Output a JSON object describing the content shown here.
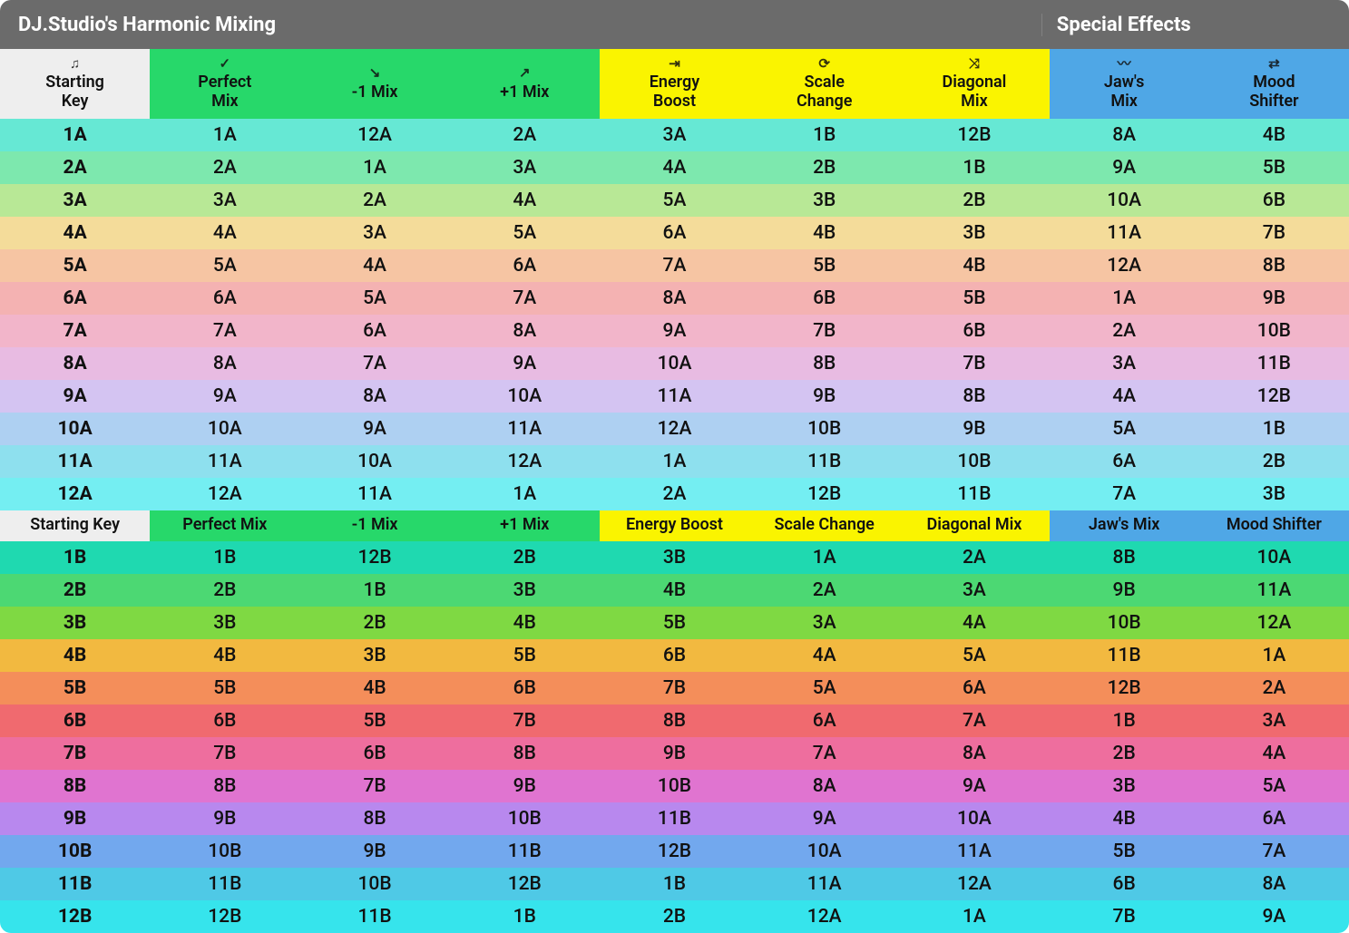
{
  "title_left": "DJ.Studio's Harmonic Mixing",
  "title_right": "Special Effects",
  "header_colors": {
    "starting": "#eeeeee",
    "green": "#27d86a",
    "yellow": "#faf400",
    "blue": "#4fa7e6"
  },
  "columns": [
    {
      "key": "starting",
      "icon": "♫",
      "label": "Starting\nKey",
      "bg_group": "starting"
    },
    {
      "key": "perfect",
      "icon": "✓",
      "label": "Perfect\nMix",
      "bg_group": "green"
    },
    {
      "key": "minus1",
      "icon": "↘",
      "label": "-1 Mix",
      "bg_group": "green"
    },
    {
      "key": "plus1",
      "icon": "↗",
      "label": "+1 Mix",
      "bg_group": "green"
    },
    {
      "key": "energy",
      "icon": "⇥",
      "label": "Energy\nBoost",
      "bg_group": "yellow"
    },
    {
      "key": "scale",
      "icon": "⟳",
      "label": "Scale\nChange",
      "bg_group": "yellow"
    },
    {
      "key": "diagonal",
      "icon": "⤨",
      "label": "Diagonal\nMix",
      "bg_group": "yellow"
    },
    {
      "key": "jaws",
      "icon": "〰",
      "label": "Jaw's\nMix",
      "bg_group": "blue"
    },
    {
      "key": "mood",
      "icon": "⇄",
      "label": "Mood\nShifter",
      "bg_group": "blue"
    }
  ],
  "sub_header_labels": [
    "Starting Key",
    "Perfect Mix",
    "-1 Mix",
    "+1 Mix",
    "Energy Boost",
    "Scale Change",
    "Diagonal Mix",
    "Jaw's Mix",
    "Mood Shifter"
  ],
  "rows_a": [
    {
      "bg": "#66e8d4",
      "cells": [
        "1A",
        "1A",
        "12A",
        "2A",
        "3A",
        "1B",
        "12B",
        "8A",
        "4B"
      ]
    },
    {
      "bg": "#7de8ae",
      "cells": [
        "2A",
        "2A",
        "1A",
        "3A",
        "4A",
        "2B",
        "1B",
        "9A",
        "5B"
      ]
    },
    {
      "bg": "#b8e896",
      "cells": [
        "3A",
        "3A",
        "2A",
        "4A",
        "5A",
        "3B",
        "2B",
        "10A",
        "6B"
      ]
    },
    {
      "bg": "#f4dc9a",
      "cells": [
        "4A",
        "4A",
        "3A",
        "5A",
        "6A",
        "4B",
        "3B",
        "11A",
        "7B"
      ]
    },
    {
      "bg": "#f6c5a3",
      "cells": [
        "5A",
        "5A",
        "4A",
        "6A",
        "7A",
        "5B",
        "4B",
        "12A",
        "8B"
      ]
    },
    {
      "bg": "#f4b2b2",
      "cells": [
        "6A",
        "6A",
        "5A",
        "7A",
        "8A",
        "6B",
        "5B",
        "1A",
        "9B"
      ]
    },
    {
      "bg": "#f2b5ca",
      "cells": [
        "7A",
        "7A",
        "6A",
        "8A",
        "9A",
        "7B",
        "6B",
        "2A",
        "10B"
      ]
    },
    {
      "bg": "#e8bbe2",
      "cells": [
        "8A",
        "8A",
        "7A",
        "9A",
        "10A",
        "8B",
        "7B",
        "3A",
        "11B"
      ]
    },
    {
      "bg": "#d4c4f2",
      "cells": [
        "9A",
        "9A",
        "8A",
        "10A",
        "11A",
        "9B",
        "8B",
        "4A",
        "12B"
      ]
    },
    {
      "bg": "#aed0f2",
      "cells": [
        "10A",
        "10A",
        "9A",
        "11A",
        "12A",
        "10B",
        "9B",
        "5A",
        "1B"
      ]
    },
    {
      "bg": "#8ee0ee",
      "cells": [
        "11A",
        "11A",
        "10A",
        "12A",
        "1A",
        "11B",
        "10B",
        "6A",
        "2B"
      ]
    },
    {
      "bg": "#74eef2",
      "cells": [
        "12A",
        "12A",
        "11A",
        "1A",
        "2A",
        "12B",
        "11B",
        "7A",
        "3B"
      ]
    }
  ],
  "rows_b": [
    {
      "bg": "#1fd9b0",
      "cells": [
        "1B",
        "1B",
        "12B",
        "2B",
        "3B",
        "1A",
        "2A",
        "8B",
        "10A"
      ]
    },
    {
      "bg": "#4cd873",
      "cells": [
        "2B",
        "2B",
        "1B",
        "3B",
        "4B",
        "2A",
        "3A",
        "9B",
        "11A"
      ]
    },
    {
      "bg": "#7fd943",
      "cells": [
        "3B",
        "3B",
        "2B",
        "4B",
        "5B",
        "3A",
        "4A",
        "10B",
        "12A"
      ]
    },
    {
      "bg": "#f2b940",
      "cells": [
        "4B",
        "4B",
        "3B",
        "5B",
        "6B",
        "4A",
        "5A",
        "11B",
        "1A"
      ]
    },
    {
      "bg": "#f48e5a",
      "cells": [
        "5B",
        "5B",
        "4B",
        "6B",
        "7B",
        "5A",
        "6A",
        "12B",
        "2A"
      ]
    },
    {
      "bg": "#f06a6f",
      "cells": [
        "6B",
        "6B",
        "5B",
        "7B",
        "8B",
        "6A",
        "7A",
        "1B",
        "3A"
      ]
    },
    {
      "bg": "#ee6e9e",
      "cells": [
        "7B",
        "7B",
        "6B",
        "8B",
        "9B",
        "7A",
        "8A",
        "2B",
        "4A"
      ]
    },
    {
      "bg": "#e074d0",
      "cells": [
        "8B",
        "8B",
        "7B",
        "9B",
        "10B",
        "8A",
        "9A",
        "3B",
        "5A"
      ]
    },
    {
      "bg": "#b888ee",
      "cells": [
        "9B",
        "9B",
        "8B",
        "10B",
        "11B",
        "9A",
        "10A",
        "4B",
        "6A"
      ]
    },
    {
      "bg": "#72a8ee",
      "cells": [
        "10B",
        "10B",
        "9B",
        "11B",
        "12B",
        "10A",
        "11A",
        "5B",
        "7A"
      ]
    },
    {
      "bg": "#4fc9e6",
      "cells": [
        "11B",
        "11B",
        "10B",
        "12B",
        "1B",
        "11A",
        "12A",
        "6B",
        "8A"
      ]
    },
    {
      "bg": "#36e4ec",
      "cells": [
        "12B",
        "12B",
        "11B",
        "1B",
        "2B",
        "12A",
        "1A",
        "7B",
        "9A"
      ]
    }
  ],
  "cell_font_color": "#111111",
  "header_font_color": "#111111",
  "cell_font_size": 21,
  "header_font_size": 18
}
